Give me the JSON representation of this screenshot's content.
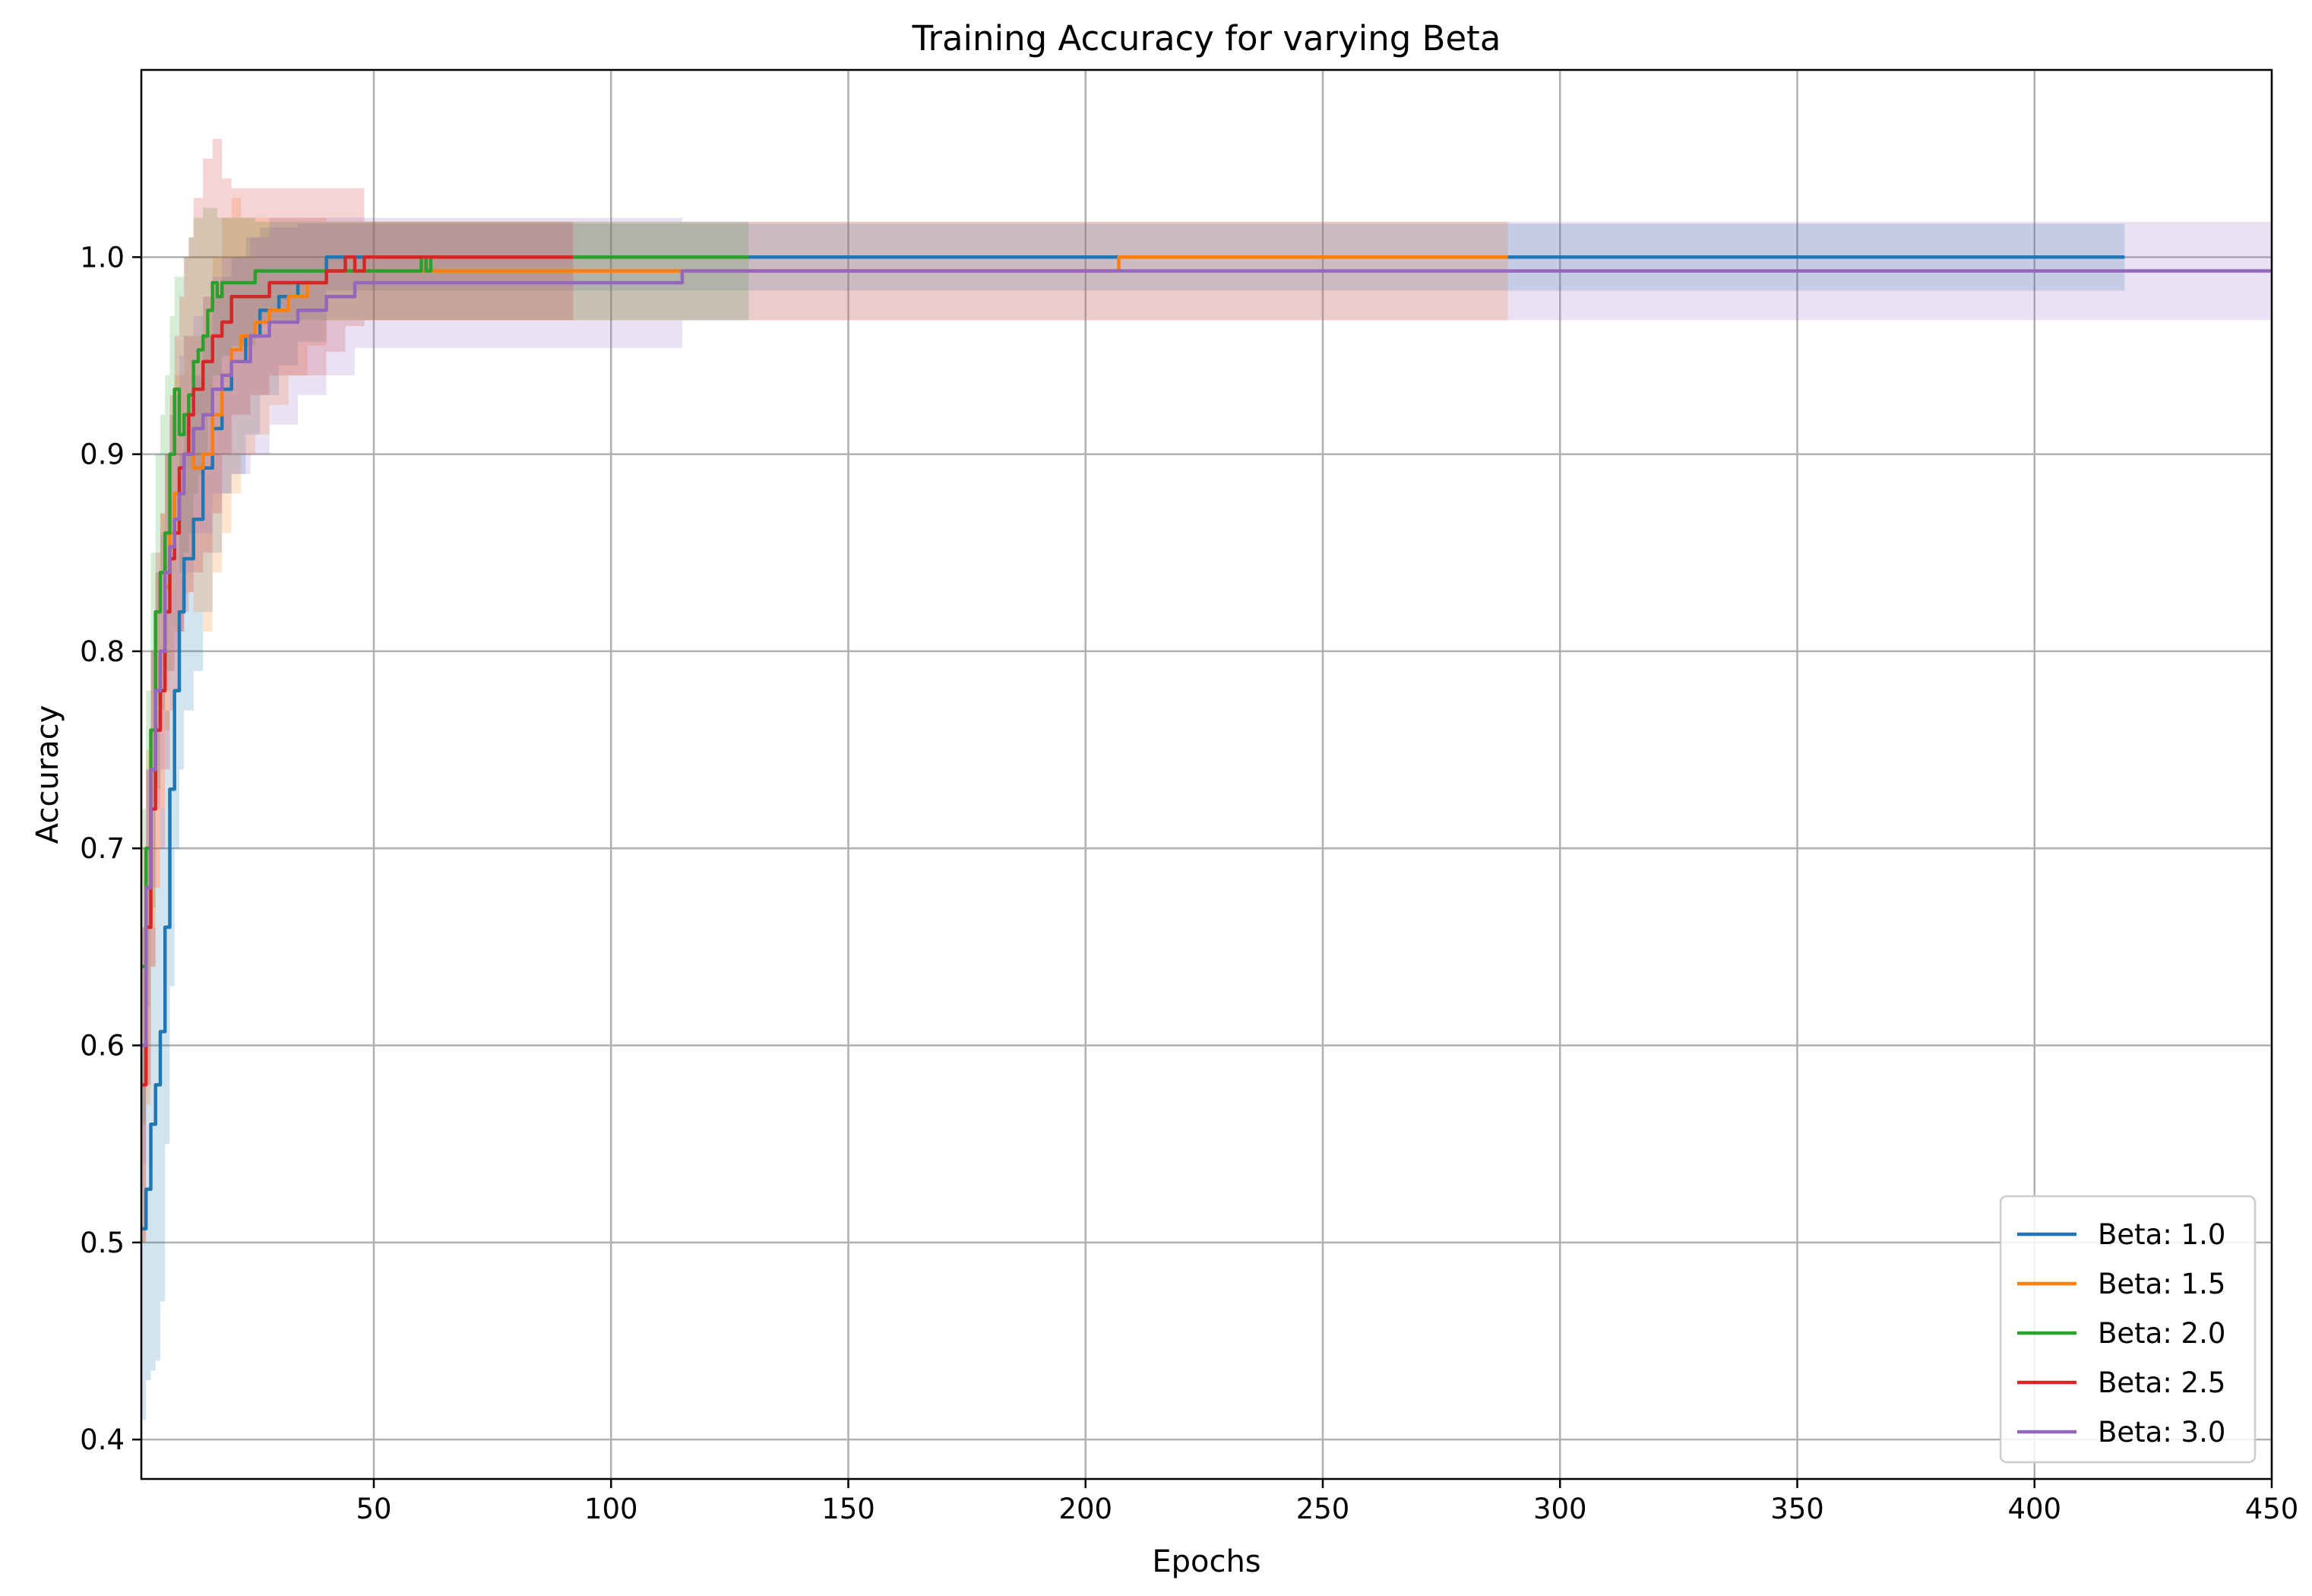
{
  "chart_data": {
    "type": "line",
    "title": "Training Accuracy for varying Beta",
    "xlabel": "Epochs",
    "ylabel": "Accuracy",
    "xlim": [
      1,
      450
    ],
    "ylim": [
      0.38,
      1.095
    ],
    "xticks": [
      50,
      100,
      150,
      200,
      250,
      300,
      350,
      400,
      450
    ],
    "yticks": [
      0.4,
      0.5,
      0.6,
      0.7,
      0.8,
      0.9,
      1.0
    ],
    "xtick_labels": [
      "50",
      "100",
      "150",
      "200",
      "250",
      "300",
      "350",
      "400",
      "450"
    ],
    "ytick_labels": [
      "0.4",
      "0.5",
      "0.6",
      "0.7",
      "0.8",
      "0.9",
      "1.0"
    ],
    "grid": true,
    "legend_position": "lower-right",
    "shaded_band": "mean ± std across runs",
    "series": [
      {
        "name": "Beta: 1.0",
        "color": "#1f77b4",
        "x": [
          1,
          2,
          3,
          4,
          5,
          6,
          7,
          8,
          9,
          10,
          12,
          14,
          16,
          18,
          20,
          23,
          26,
          30,
          34,
          40,
          60,
          100,
          129,
          200,
          300,
          419
        ],
        "y": [
          0.507,
          0.527,
          0.56,
          0.58,
          0.607,
          0.66,
          0.73,
          0.78,
          0.82,
          0.847,
          0.867,
          0.893,
          0.913,
          0.933,
          0.947,
          0.96,
          0.973,
          0.98,
          0.987,
          1.0,
          1.0,
          1.0,
          1.0,
          1.0,
          1.0,
          1.0
        ],
        "upper": [
          0.6,
          0.62,
          0.66,
          0.68,
          0.72,
          0.77,
          0.83,
          0.86,
          0.9,
          0.92,
          0.94,
          0.96,
          0.98,
          0.99,
          1.0,
          1.01,
          1.015,
          1.015,
          1.017,
          1.017,
          1.017,
          1.017,
          1.017,
          1.017,
          1.017,
          1.017
        ],
        "lower": [
          0.41,
          0.43,
          0.435,
          0.44,
          0.47,
          0.55,
          0.63,
          0.7,
          0.74,
          0.77,
          0.79,
          0.82,
          0.85,
          0.88,
          0.89,
          0.91,
          0.93,
          0.945,
          0.957,
          0.983,
          0.983,
          0.983,
          0.983,
          0.983,
          0.983,
          0.983
        ]
      },
      {
        "name": "Beta: 1.5",
        "color": "#ff7f0e",
        "x": [
          1,
          2,
          3,
          4,
          5,
          6,
          7,
          8,
          10,
          12,
          14,
          16,
          18,
          20,
          22,
          25,
          28,
          32,
          36,
          40,
          48,
          60,
          100,
          114,
          150,
          206,
          207,
          250,
          289
        ],
        "y": [
          0.6,
          0.66,
          0.72,
          0.76,
          0.8,
          0.833,
          0.86,
          0.88,
          0.9,
          0.893,
          0.9,
          0.92,
          0.94,
          0.953,
          0.96,
          0.967,
          0.973,
          0.98,
          0.987,
          0.993,
          0.993,
          0.993,
          0.993,
          0.993,
          0.993,
          0.993,
          1.0,
          1.0,
          1.0
        ],
        "upper": [
          0.7,
          0.75,
          0.8,
          0.84,
          0.87,
          0.9,
          0.92,
          0.94,
          0.96,
          0.96,
          0.98,
          1.0,
          1.02,
          1.03,
          1.02,
          1.02,
          1.02,
          1.02,
          1.02,
          1.018,
          1.018,
          1.018,
          1.018,
          1.018,
          1.018,
          1.018,
          1.018,
          1.018,
          1.018
        ],
        "lower": [
          0.5,
          0.57,
          0.64,
          0.68,
          0.72,
          0.76,
          0.79,
          0.81,
          0.83,
          0.82,
          0.81,
          0.84,
          0.86,
          0.88,
          0.9,
          0.91,
          0.925,
          0.94,
          0.955,
          0.968,
          0.968,
          0.968,
          0.968,
          0.968,
          0.968,
          0.968,
          0.968,
          0.968,
          0.968
        ]
      },
      {
        "name": "Beta: 2.0",
        "color": "#2ca02c",
        "x": [
          1,
          2,
          3,
          4,
          5,
          6,
          7,
          8,
          9,
          10,
          11,
          12,
          13,
          14,
          15,
          16,
          17,
          18,
          20,
          25,
          30,
          40,
          50,
          58,
          60,
          61,
          62,
          80,
          92,
          100,
          129
        ],
        "y": [
          0.64,
          0.7,
          0.76,
          0.82,
          0.84,
          0.86,
          0.9,
          0.933,
          0.91,
          0.92,
          0.93,
          0.947,
          0.953,
          0.96,
          0.973,
          0.987,
          0.98,
          0.987,
          0.987,
          0.993,
          0.993,
          0.993,
          0.993,
          0.993,
          1.0,
          0.993,
          1.0,
          1.0,
          1.0,
          1.0,
          1.0
        ],
        "upper": [
          0.72,
          0.78,
          0.85,
          0.9,
          0.92,
          0.94,
          0.97,
          0.99,
          0.99,
          1.0,
          1.01,
          1.02,
          1.02,
          1.025,
          1.025,
          1.025,
          1.02,
          1.02,
          1.02,
          1.018,
          1.018,
          1.018,
          1.018,
          1.018,
          1.018,
          1.018,
          1.018,
          1.018,
          1.018,
          1.018,
          1.018
        ],
        "lower": [
          0.56,
          0.62,
          0.67,
          0.73,
          0.77,
          0.79,
          0.83,
          0.86,
          0.84,
          0.85,
          0.86,
          0.88,
          0.89,
          0.9,
          0.92,
          0.94,
          0.94,
          0.95,
          0.955,
          0.968,
          0.968,
          0.968,
          0.968,
          0.968,
          0.968,
          0.968,
          0.968,
          0.968,
          0.968,
          0.968,
          0.968
        ]
      },
      {
        "name": "Beta: 2.5",
        "color": "#d62728",
        "x": [
          1,
          2,
          3,
          4,
          5,
          6,
          7,
          8,
          9,
          10,
          11,
          12,
          14,
          16,
          18,
          20,
          24,
          28,
          34,
          40,
          42,
          44,
          46,
          48,
          50,
          60,
          80,
          92
        ],
        "y": [
          0.58,
          0.66,
          0.72,
          0.76,
          0.78,
          0.82,
          0.847,
          0.86,
          0.893,
          0.9,
          0.92,
          0.933,
          0.947,
          0.96,
          0.967,
          0.98,
          0.98,
          0.987,
          0.987,
          0.993,
          0.993,
          1.0,
          0.993,
          1.0,
          1.0,
          1.0,
          1.0,
          1.0
        ],
        "upper": [
          0.66,
          0.74,
          0.8,
          0.85,
          0.87,
          0.9,
          0.93,
          0.96,
          0.98,
          1.0,
          1.01,
          1.03,
          1.05,
          1.06,
          1.04,
          1.035,
          1.035,
          1.035,
          1.035,
          1.035,
          1.035,
          1.035,
          1.035,
          1.018,
          1.018,
          1.018,
          1.018,
          1.018
        ],
        "lower": [
          0.5,
          0.58,
          0.64,
          0.68,
          0.7,
          0.74,
          0.77,
          0.78,
          0.81,
          0.82,
          0.83,
          0.84,
          0.85,
          0.87,
          0.9,
          0.92,
          0.93,
          0.94,
          0.94,
          0.952,
          0.952,
          0.965,
          0.965,
          0.968,
          0.968,
          0.968,
          0.968,
          0.968
        ]
      },
      {
        "name": "Beta: 3.0",
        "color": "#9467bd",
        "x": [
          1,
          2,
          3,
          4,
          5,
          6,
          7,
          8,
          9,
          10,
          12,
          14,
          16,
          18,
          20,
          24,
          28,
          34,
          40,
          46,
          60,
          80,
          114,
          115,
          150,
          200,
          300,
          400,
          450
        ],
        "y": [
          0.6,
          0.68,
          0.74,
          0.78,
          0.8,
          0.84,
          0.853,
          0.867,
          0.88,
          0.9,
          0.913,
          0.92,
          0.933,
          0.94,
          0.947,
          0.96,
          0.967,
          0.973,
          0.98,
          0.987,
          0.987,
          0.987,
          0.987,
          0.993,
          0.993,
          0.993,
          0.993,
          0.993,
          0.993
        ],
        "upper": [
          0.66,
          0.74,
          0.8,
          0.84,
          0.86,
          0.9,
          0.92,
          0.93,
          0.95,
          0.96,
          0.97,
          0.98,
          0.99,
          1.0,
          1.0,
          1.01,
          1.02,
          1.02,
          1.02,
          1.02,
          1.02,
          1.02,
          1.02,
          1.018,
          1.018,
          1.018,
          1.018,
          1.018,
          1.018
        ],
        "lower": [
          0.54,
          0.62,
          0.68,
          0.72,
          0.74,
          0.78,
          0.79,
          0.8,
          0.81,
          0.84,
          0.86,
          0.86,
          0.88,
          0.88,
          0.89,
          0.9,
          0.915,
          0.93,
          0.94,
          0.954,
          0.954,
          0.954,
          0.954,
          0.968,
          0.968,
          0.968,
          0.968,
          0.968,
          0.968
        ]
      }
    ]
  }
}
